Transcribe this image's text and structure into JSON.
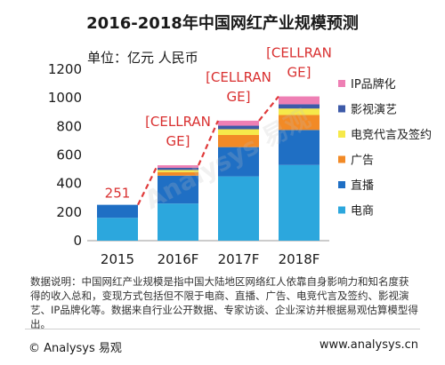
{
  "chart_data": {
    "type": "bar",
    "stacked": true,
    "title": "2016-2018年中国网红产业规模预测",
    "unit": "单位：亿元 人民币",
    "categories": [
      "2015",
      "2016F",
      "2017F",
      "2018F"
    ],
    "ylim": [
      0,
      1200
    ],
    "yticks": [
      0,
      200,
      400,
      600,
      800,
      1000,
      1200
    ],
    "grid": false,
    "legend_position": "right",
    "series": [
      {
        "name": "电商",
        "color": "#2ca7dd",
        "values": [
          160,
          260,
          450,
          530
        ]
      },
      {
        "name": "直播",
        "color": "#1f6fc4",
        "values": [
          91,
          195,
          205,
          245
        ]
      },
      {
        "name": "广告",
        "color": "#f28a26",
        "values": [
          0,
          25,
          85,
          105
        ]
      },
      {
        "name": "电竞代言及签约",
        "color": "#f6e94a",
        "values": [
          0,
          15,
          40,
          45
        ]
      },
      {
        "name": "影视演艺",
        "color": "#3d5aa8",
        "values": [
          0,
          15,
          25,
          30
        ]
      },
      {
        "name": "IP品牌化",
        "color": "#ee7fb4",
        "values": [
          0,
          18,
          35,
          55
        ]
      }
    ],
    "total_labels": [
      "251",
      "[CELLRANGE]",
      "[CELLRANGE]",
      "[CELLRANGE]"
    ],
    "trend_line_color": "#e03a3a",
    "label_color": "#d93030"
  },
  "note": "数据说明：中国网红产业规模是指中国大陆地区网络红人依靠自身影响力和知名度获得的收入总和，变现方式包括但不限于电商、直播、广告、电竞代言及签约、影视演艺、IP品牌化等。数据来自行业公开数据、专家访谈、企业深访并根据易观估算模型得出。",
  "footer": {
    "left": "© Analysys 易观",
    "right": "www.analysys.cn"
  },
  "watermark": "Analysys 易观"
}
